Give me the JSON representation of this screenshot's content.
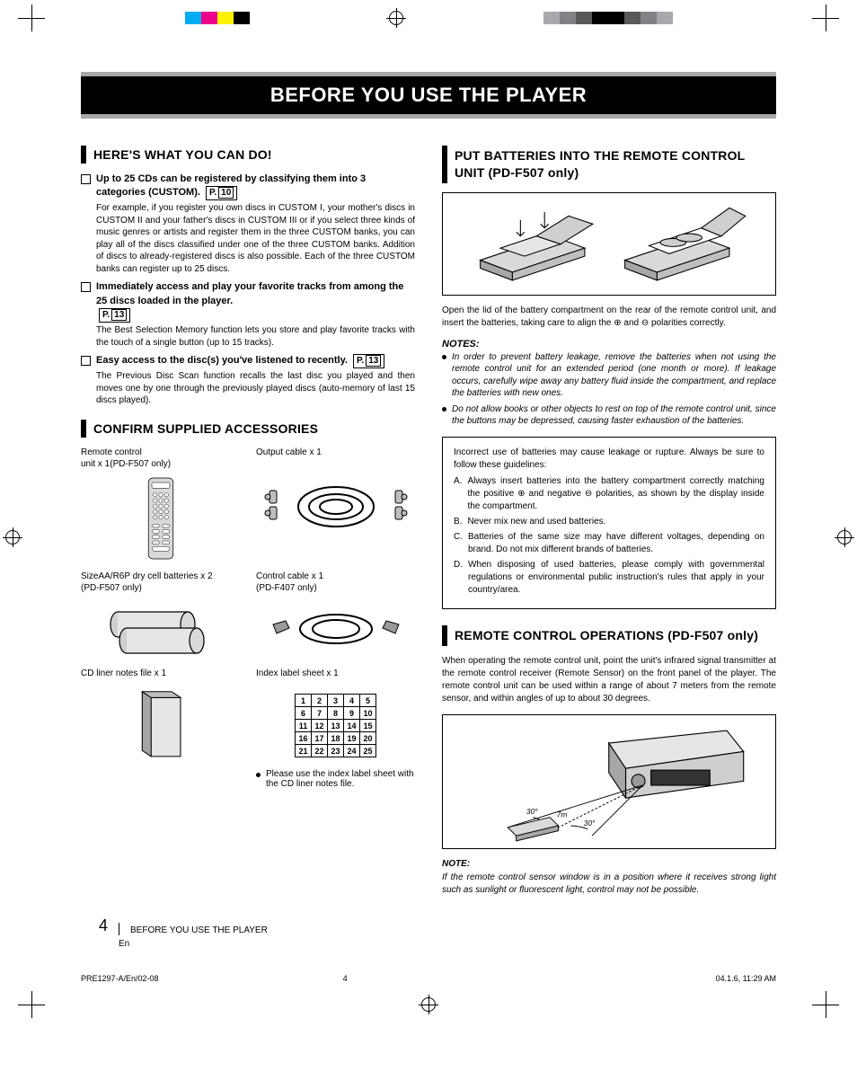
{
  "print_marks": {
    "color_bars": [
      "#00aeef",
      "#ec008c",
      "#fff200",
      "#000000",
      "#00aeef",
      "#ec008c",
      "#fff200",
      "#a7a9ac",
      "#808285",
      "#58595b",
      "#000000"
    ]
  },
  "banner": "BEFORE YOU USE THE PLAYER",
  "left_col": {
    "head1": "HERE'S WHAT YOU CAN DO!",
    "item1": {
      "title_a": "Up to 25 CDs can be registered by classifying them into 3 categories (CUSTOM).",
      "page_label": "P.",
      "page_num": "10",
      "desc": "For example, if you register you own discs in CUSTOM I, your mother's discs in CUSTOM II and your father's discs in CUSTOM III or if you select three kinds of music genres or artists and register them in the three CUSTOM banks, you can play all of the discs classified under one of the three CUSTOM banks. Addition of discs to already-registered discs is also possible. Each of the three CUSTOM banks can register up to 25 discs."
    },
    "item2": {
      "title": "Immediately access and play your favorite tracks from among the 25 discs loaded in the player.",
      "page_label": "P.",
      "page_num": "13",
      "desc": "The Best Selection Memory function lets you store and play favorite tracks with the touch of a single button (up to 15 tracks)."
    },
    "item3": {
      "title": "Easy access to the disc(s) you've listened to recently.",
      "page_label": "P.",
      "page_num": "13",
      "desc": "The Previous Disc Scan function recalls the last disc you played and then moves one by one through the previously played discs (auto-memory of last 15 discs played)."
    },
    "head2": "CONFIRM SUPPLIED ACCESSORIES",
    "acc": {
      "remote": {
        "label": "Remote control\nunit x 1(PD-F507 only)"
      },
      "output": {
        "label": "Output cable x 1"
      },
      "batt": {
        "label": "SizeAA/R6P dry cell batteries x 2\n(PD-F507 only)"
      },
      "ctrl": {
        "label": "Control cable x 1\n(PD-F407 only)"
      },
      "liner": {
        "label": "CD liner notes file x 1"
      },
      "index": {
        "label": "Index label sheet x 1"
      }
    },
    "index_table": {
      "rows": [
        [
          "1",
          "2",
          "3",
          "4",
          "5"
        ],
        [
          "6",
          "7",
          "8",
          "9",
          "10"
        ],
        [
          "11",
          "12",
          "13",
          "14",
          "15"
        ],
        [
          "16",
          "17",
          "18",
          "19",
          "20"
        ],
        [
          "21",
          "22",
          "23",
          "24",
          "25"
        ]
      ]
    },
    "index_note": "Please use the index label sheet with the CD liner notes file."
  },
  "right_col": {
    "head1": "PUT BATTERIES INTO THE REMOTE CONTROL UNIT (PD-F507 only)",
    "battery_para": "Open the lid of the battery compartment on the rear of the remote control unit, and insert the batteries, taking care to align the ⊕ and ⊖ polarities correctly.",
    "notes_head": "NOTES:",
    "notes": [
      "In order to prevent battery leakage, remove the batteries when not using the remote control unit for an extended period (one month or more). If leakage occurs, carefully wipe away any battery fluid inside the compartment, and replace the batteries with new ones.",
      "Do not allow books or other objects to rest on top of the remote control unit, since the buttons may be depressed, causing faster exhaustion of the batteries."
    ],
    "warn_intro": "Incorrect use of batteries may cause leakage or rupture. Always be sure to follow these guidelines:",
    "warn_items": [
      {
        "lbl": "A.",
        "txt": "Always insert batteries into the battery compartment correctly matching the positive ⊕ and negative ⊖ polarities, as shown by the display inside the compartment."
      },
      {
        "lbl": "B.",
        "txt": "Never mix new and used batteries."
      },
      {
        "lbl": "C.",
        "txt": "Batteries of the same size may have different voltages, depending on brand. Do not mix different brands of batteries."
      },
      {
        "lbl": "D.",
        "txt": "When disposing of used batteries, please comply with governmental regulations or environmental public instruction's rules that apply in your country/area."
      }
    ],
    "head2": "REMOTE CONTROL OPERATIONS (PD-F507 only)",
    "remote_para": "When operating the remote control unit, point the unit's infrared signal transmitter at the remote control receiver (Remote Sensor) on the front panel of the player. The remote control unit can be used within a range of about 7 meters from the remote sensor, and within angles of up to about 30 degrees.",
    "angle1": "30°",
    "distance": "7m",
    "angle2": "30°",
    "note_head": "NOTE:",
    "note_text": "If the remote control sensor window is in a position where it receives strong light such as sunlight or fluorescent light, control may not be possible."
  },
  "footer": {
    "page_num": "4",
    "title": "BEFORE YOU USE THE PLAYER",
    "lang": "En"
  },
  "slug": {
    "code": "PRE1297-A/En/02-08",
    "page": "4",
    "timestamp": "04.1.6, 11:29 AM"
  }
}
